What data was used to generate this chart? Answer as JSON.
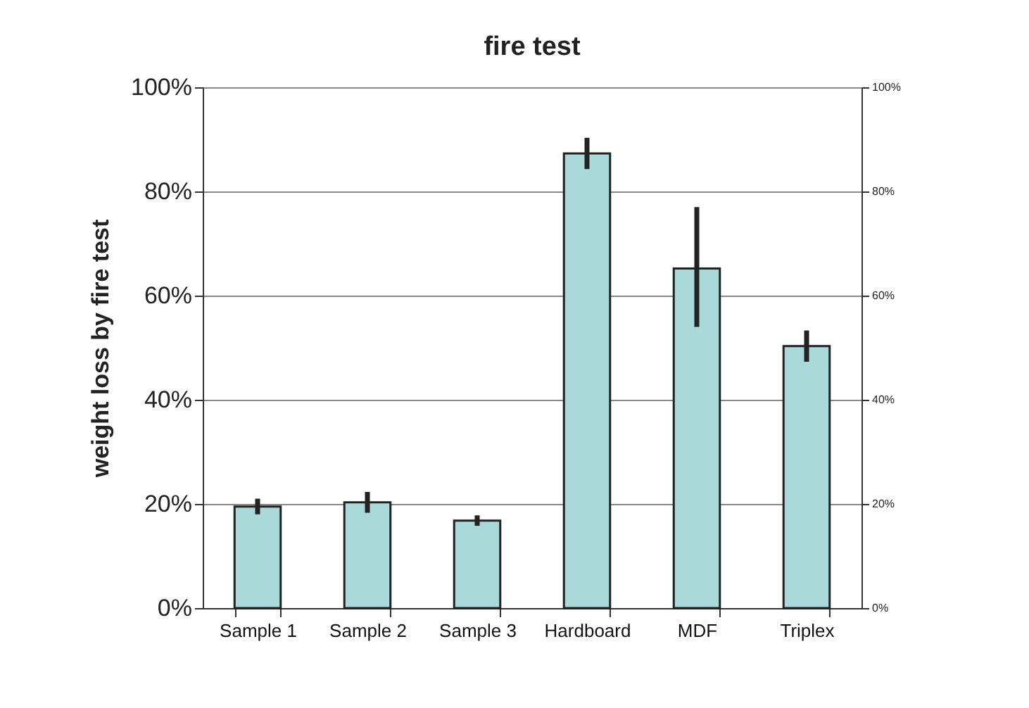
{
  "chart_data": {
    "type": "bar",
    "title": "fire test",
    "ylabel": "weight loss by fire test",
    "categories": [
      "Sample 1",
      "Sample 2",
      "Sample 3",
      "Hardboard",
      "MDF",
      "Triplex"
    ],
    "values": [
      19.5,
      20.3,
      16.8,
      87.3,
      65.2,
      50.3
    ],
    "errors": [
      1.5,
      2,
      1,
      3,
      [
        54,
        77
      ],
      3
    ],
    "color": "#a9d9d9",
    "ylim": [
      0,
      100
    ],
    "yticks": [
      {
        "value": 0,
        "label": "0%"
      },
      {
        "value": 20,
        "label": "20%"
      },
      {
        "value": 40,
        "label": "40%"
      },
      {
        "value": 60,
        "label": "60%"
      },
      {
        "value": 80,
        "label": "80%"
      },
      {
        "value": 100,
        "label": "100%"
      }
    ],
    "y2lim": [
      0,
      100
    ],
    "y2ticks": [
      {
        "value": 0,
        "label": "0%"
      },
      {
        "value": 20,
        "label": "20%"
      },
      {
        "value": 40,
        "label": "40%"
      },
      {
        "value": 60,
        "label": "60%"
      },
      {
        "value": 80,
        "label": "80%"
      },
      {
        "value": 100,
        "label": "100%"
      }
    ],
    "grid": "y"
  }
}
